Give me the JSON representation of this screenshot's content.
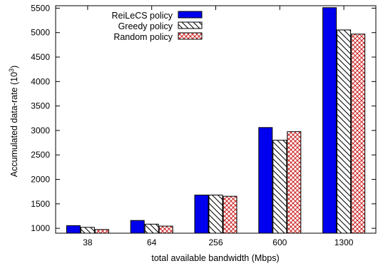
{
  "chart_data": {
    "type": "bar",
    "title": "",
    "xlabel": "total available bandwidth (Mbps)",
    "ylabel": "Accumulated data-rate (10",
    "ylabel_exponent": "3",
    "ylabel_suffix": ")",
    "categories": [
      "38",
      "64",
      "256",
      "600",
      "1300"
    ],
    "ylim": [
      900,
      5550
    ],
    "yticks": [
      1000,
      1500,
      2000,
      2500,
      3000,
      3500,
      4000,
      4500,
      5000,
      5500
    ],
    "legend_position": "top-left",
    "grid": false,
    "series": [
      {
        "name": "ReiLeCS policy",
        "pattern": "solid",
        "color": "#0000ee",
        "values": [
          1055,
          1160,
          1680,
          3060,
          5510
        ]
      },
      {
        "name": "Greedy policy",
        "pattern": "diagonal-hatch",
        "color": "#000000",
        "values": [
          1020,
          1085,
          1680,
          2800,
          5055
        ]
      },
      {
        "name": "Random policy",
        "pattern": "crosshatch",
        "color": "#cc2222",
        "values": [
          975,
          1045,
          1655,
          2975,
          4970
        ]
      }
    ]
  }
}
